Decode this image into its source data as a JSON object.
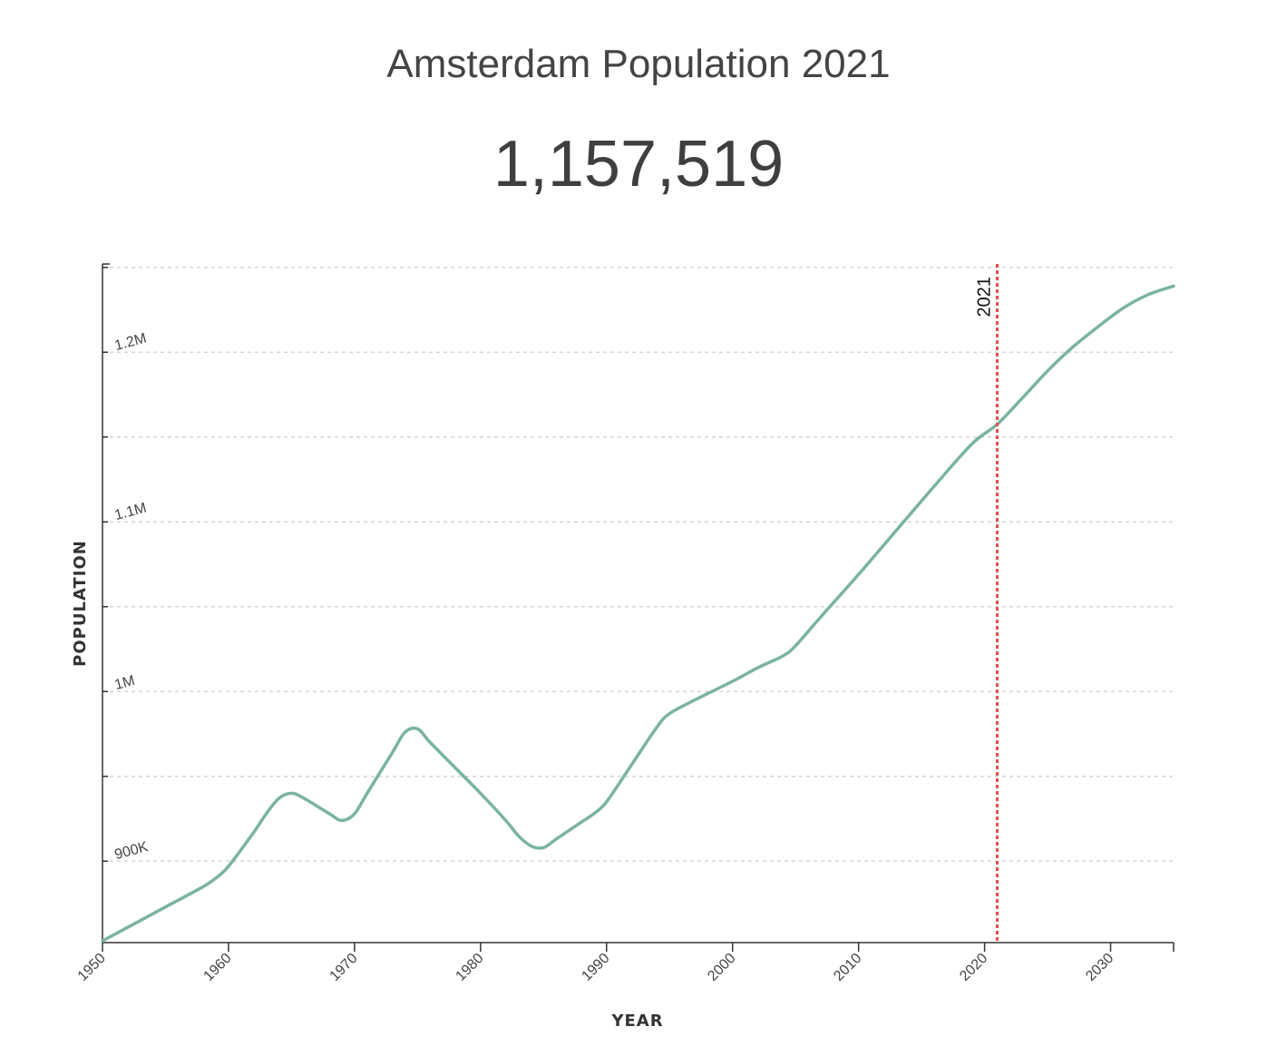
{
  "header": {
    "title": "Amsterdam Population 2021",
    "value": "1,157,519"
  },
  "chart_data": {
    "type": "line",
    "xlabel": "YEAR",
    "ylabel": "POPULATION",
    "xlim": [
      1950,
      2035
    ],
    "ylim": [
      852000,
      1252000
    ],
    "x_ticks": [
      1950,
      1960,
      1970,
      1980,
      1990,
      2000,
      2010,
      2020,
      2030
    ],
    "x_tick_labels": [
      "1950",
      "1960",
      "1970",
      "1980",
      "1990",
      "2000",
      "2010",
      "2020",
      "2030"
    ],
    "y_ticks": [
      900000,
      1000000,
      1100000,
      1200000
    ],
    "y_tick_labels": [
      "900K",
      "1M",
      "1.1M",
      "1.2M"
    ],
    "y_gridlines": [
      900000,
      950000,
      1000000,
      1050000,
      1100000,
      1150000,
      1200000,
      1250000
    ],
    "grid": true,
    "line_color": "#7ab3a3",
    "marker": {
      "x": 2021,
      "label": "2021",
      "color": "#e05050"
    },
    "series": [
      {
        "x": [
          1950,
          1952,
          1954,
          1956,
          1958,
          1959,
          1960,
          1962,
          1963,
          1964,
          1965,
          1966,
          1968,
          1969,
          1970,
          1971,
          1973,
          1974,
          1975,
          1976,
          1978,
          1980,
          1982,
          1983,
          1984,
          1985,
          1986,
          1988,
          1989,
          1990,
          1992,
          1994,
          1995,
          1997,
          2000,
          2002,
          2004,
          2005,
          2007,
          2010,
          2013,
          2016,
          2019,
          2021,
          2023,
          2025,
          2027,
          2029,
          2031,
          2033,
          2035
        ],
        "y": [
          853000,
          861000,
          869000,
          877000,
          885000,
          890000,
          897000,
          917000,
          928000,
          937000,
          940000,
          937000,
          928000,
          924000,
          928000,
          940000,
          964000,
          976000,
          978000,
          970000,
          955000,
          940000,
          924000,
          915000,
          909000,
          908000,
          913000,
          923000,
          928000,
          935000,
          957000,
          979000,
          987000,
          995000,
          1006000,
          1014000,
          1021000,
          1027000,
          1044000,
          1069000,
          1095000,
          1121000,
          1146000,
          1157519,
          1173000,
          1189000,
          1203000,
          1215000,
          1226000,
          1234000,
          1239000
        ]
      }
    ]
  }
}
